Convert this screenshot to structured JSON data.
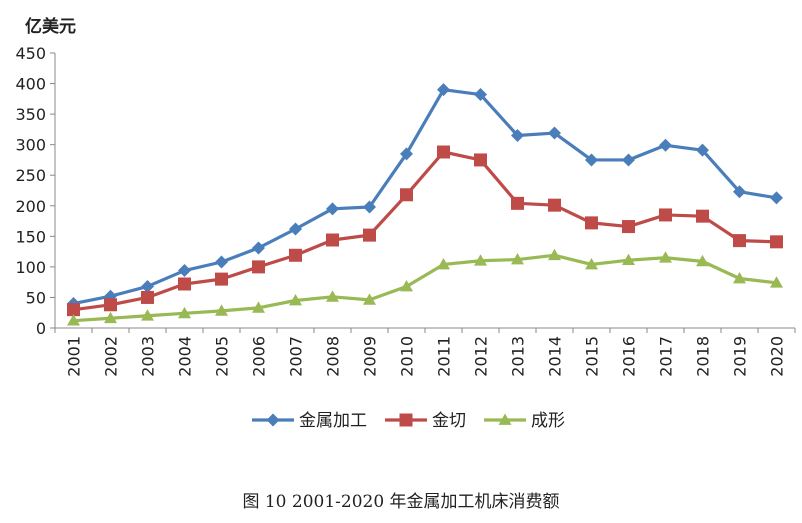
{
  "chart_data": {
    "type": "line",
    "ylabel": "亿美元",
    "ylim": [
      0,
      450
    ],
    "yticks": [
      0,
      50,
      100,
      150,
      200,
      250,
      300,
      350,
      400,
      450
    ],
    "grid": false,
    "legend_position": "bottom",
    "categories": [
      "2001",
      "2002",
      "2003",
      "2004",
      "2005",
      "2006",
      "2007",
      "2008",
      "2009",
      "2010",
      "2011",
      "2012",
      "2013",
      "2014",
      "2015",
      "2016",
      "2017",
      "2018",
      "2019",
      "2020"
    ],
    "series": [
      {
        "name": "金属加工",
        "color": "#4a7ebb",
        "marker": "diamond",
        "values": [
          40,
          52,
          68,
          94,
          108,
          131,
          162,
          195,
          198,
          285,
          390,
          382,
          315,
          319,
          275,
          275,
          299,
          291,
          223,
          213
        ]
      },
      {
        "name": "金切",
        "color": "#be4b48",
        "marker": "square",
        "values": [
          30,
          38,
          50,
          72,
          80,
          100,
          119,
          144,
          152,
          218,
          288,
          275,
          204,
          201,
          172,
          166,
          185,
          183,
          143,
          141
        ]
      },
      {
        "name": "成形",
        "color": "#98b954",
        "marker": "triangle",
        "values": [
          12,
          16,
          20,
          24,
          28,
          33,
          45,
          51,
          46,
          68,
          104,
          110,
          112,
          119,
          104,
          111,
          115,
          109,
          81,
          74
        ]
      }
    ]
  },
  "caption": "图 10    2001-2020 年金属加工机床消费额"
}
